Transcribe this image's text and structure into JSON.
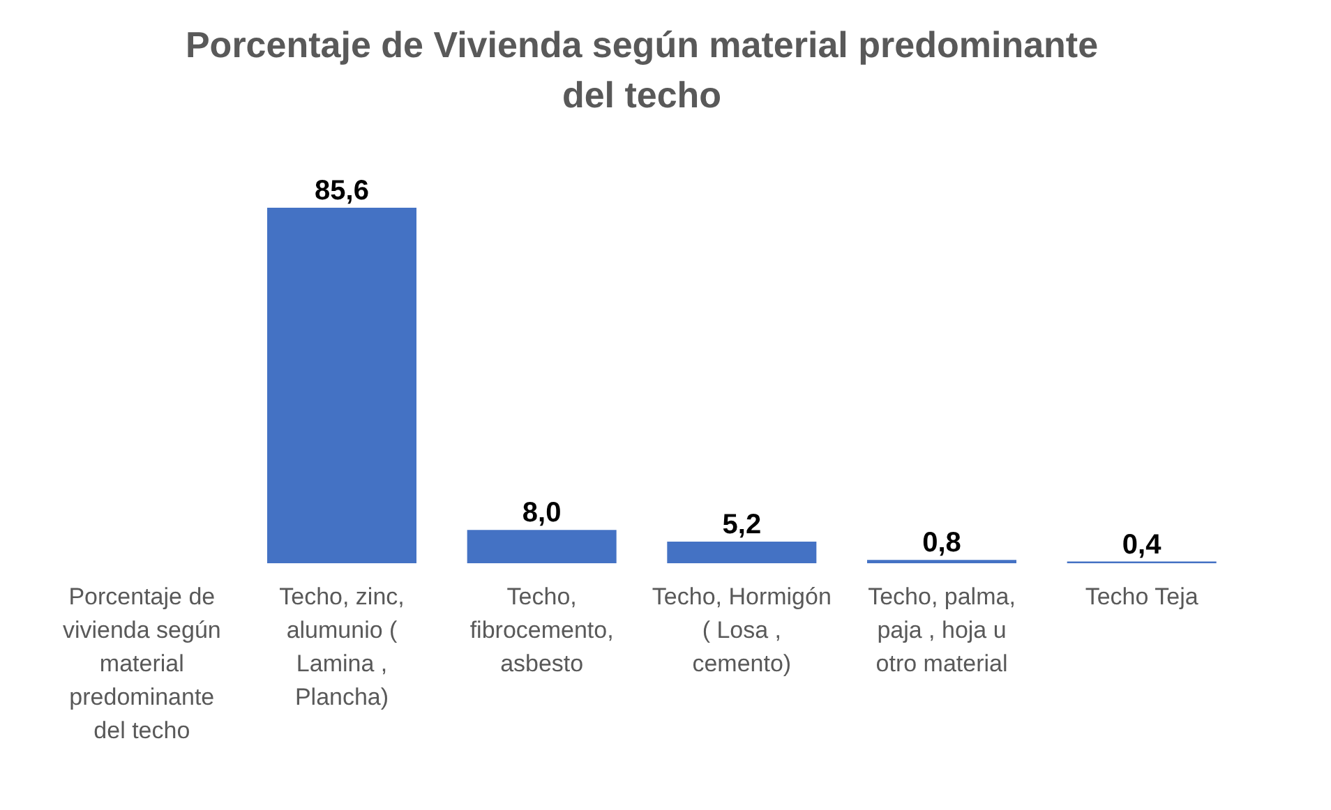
{
  "chart_data": {
    "type": "bar",
    "title": "Porcentaje de Vivienda según material predominante del techo",
    "categories": [
      "Porcentaje de vivienda según material predominante del techo",
      "Techo, zinc, alumunio ( Lamina , Plancha)",
      "Techo, fibrocemento, asbesto",
      "Techo, Hormigón ( Losa , cemento)",
      "Techo, palma, paja , hoja u otro material",
      "Techo Teja"
    ],
    "values": [
      null,
      85.6,
      8.0,
      5.2,
      0.8,
      0.4
    ],
    "value_labels": [
      null,
      "85,6",
      "8,0",
      "5,2",
      "0,8",
      "0,4"
    ],
    "color": "#4472c4"
  }
}
